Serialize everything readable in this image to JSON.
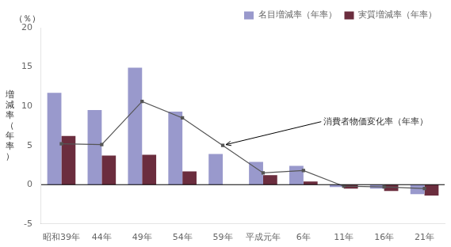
{
  "chart_data": {
    "type": "bar",
    "categories": [
      "昭和39年",
      "44年",
      "49年",
      "54年",
      "59年",
      "平成元年",
      "6年",
      "11年",
      "16年",
      "21年"
    ],
    "series": [
      {
        "name": "名目増減率（年率）",
        "color": "#9999cc",
        "values": [
          11.7,
          9.5,
          14.9,
          9.3,
          3.9,
          2.9,
          2.4,
          -0.3,
          -0.5,
          -1.2
        ]
      },
      {
        "name": "実質増減率（年率）",
        "color": "#6b2d3e",
        "values": [
          6.2,
          3.7,
          3.8,
          1.7,
          null,
          1.2,
          0.4,
          -0.5,
          -0.8,
          -1.4
        ]
      },
      {
        "type": "line",
        "color": "#555555",
        "marker": "square",
        "line_style": "solid",
        "values": [
          5.2,
          5.1,
          10.6,
          8.5,
          5.0,
          1.5,
          1.8,
          -0.2,
          -0.3,
          -0.5
        ]
      }
    ],
    "ylabel": "増\n減\n率\n（\n年\n率\n）",
    "annotations": [
      {
        "text": "（％）",
        "position": "top left"
      },
      {
        "text": "消費者物価変化率（年率）",
        "x": "59年",
        "y": 5.0
      }
    ],
    "ylim": [
      -5,
      20
    ],
    "yticks": [
      -5,
      0,
      5,
      10,
      15,
      20
    ],
    "grid": false,
    "legend": "upper right"
  }
}
